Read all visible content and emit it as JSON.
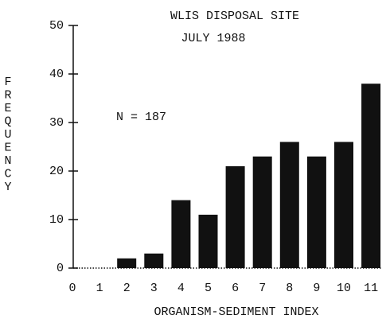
{
  "chart_data": {
    "type": "bar",
    "title": "WLIS DISPOSAL SITE",
    "subtitle": "JULY 1988",
    "annotation": "N = 187",
    "x_label": "ORGANISM-SEDIMENT INDEX",
    "y_label": "FREQUENCY",
    "categories": [
      "0",
      "1",
      "2",
      "3",
      "4",
      "5",
      "6",
      "7",
      "8",
      "9",
      "10",
      "11"
    ],
    "values": [
      0,
      0,
      2,
      3,
      14,
      11,
      21,
      23,
      26,
      23,
      26,
      38
    ],
    "color": "#111111",
    "ylim": [
      0,
      50
    ],
    "yticks": [
      0,
      10,
      20,
      30,
      40,
      50
    ],
    "grid": false
  }
}
